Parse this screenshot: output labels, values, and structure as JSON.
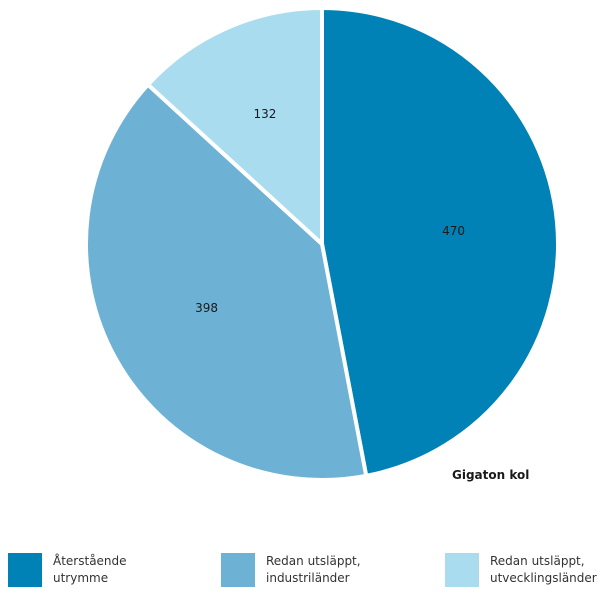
{
  "chart_data": {
    "type": "pie",
    "unit_label": "Gigaton kol",
    "slices": [
      {
        "label": "Återstående utrymme",
        "label_lines": [
          "Återstående",
          "utrymme"
        ],
        "value": 470,
        "color": "#0082b7"
      },
      {
        "label": "Redan utsläppt, industriländer",
        "label_lines": [
          "Redan utsläppt,",
          "industriländer"
        ],
        "value": 398,
        "color": "#6db1d5"
      },
      {
        "label": "Redan utsläppt, utvecklingsländer",
        "label_lines": [
          "Redan utsläppt,",
          "utvecklingsländer"
        ],
        "value": 132,
        "color": "#aadcf0"
      }
    ],
    "start": "12 o'clock",
    "direction": "clockwise",
    "legend_position": "bottom"
  }
}
